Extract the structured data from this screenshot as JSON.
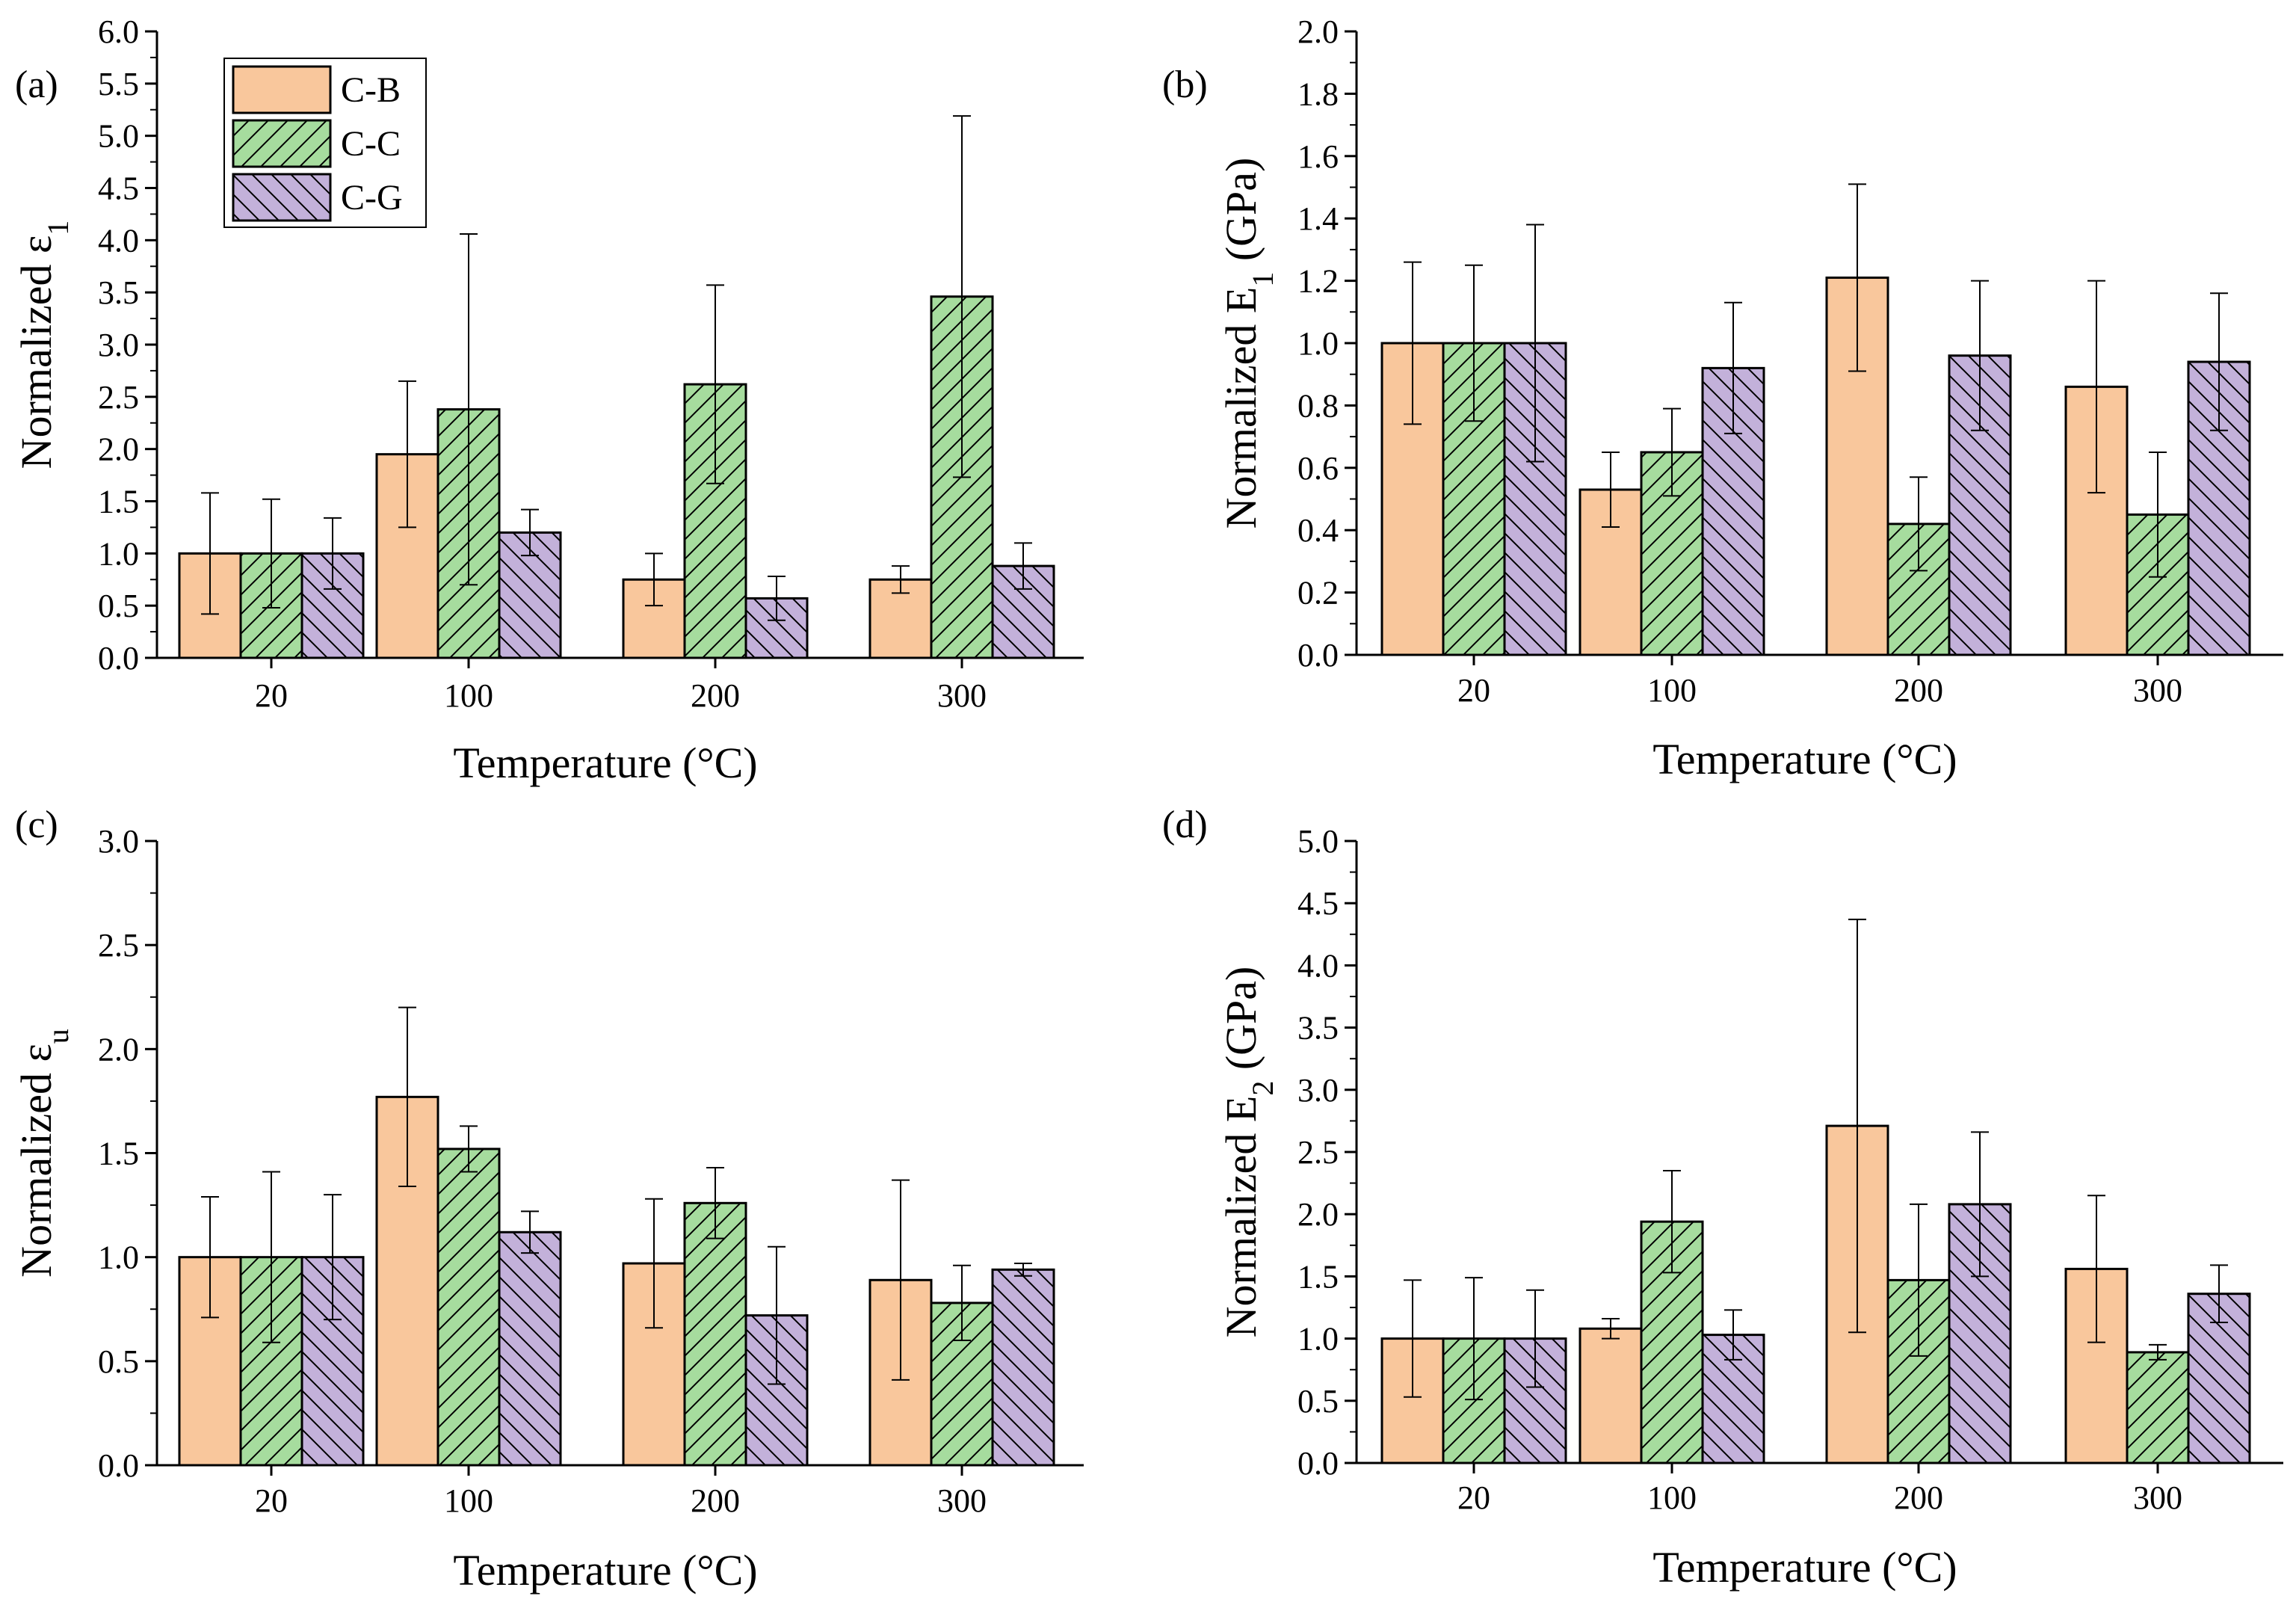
{
  "figure": {
    "description_label": "Four-panel grouped bar chart of normalized properties vs temperature"
  },
  "colors": {
    "C-B": "#f9c79c",
    "C-C": "#a6dc9e",
    "C-G": "#c3b1da"
  },
  "legend": [
    "C-B",
    "C-C",
    "C-G"
  ],
  "chart_data": [
    {
      "type": "bar",
      "panel": "(a)",
      "xlabel": "Temperature (°C)",
      "ylabel_main": "Normalized ε",
      "ylabel_sub": "1",
      "categories": [
        "20",
        "100",
        "200",
        "300"
      ],
      "ylim": [
        0,
        6
      ],
      "yticks": [
        "0.0",
        "0.5",
        "1.0",
        "1.5",
        "2.0",
        "2.5",
        "3.0",
        "3.5",
        "4.0",
        "4.5",
        "5.0",
        "5.5",
        "6.0"
      ],
      "series": [
        {
          "name": "C-B",
          "values": [
            1.0,
            1.95,
            0.75,
            0.75
          ],
          "errors": [
            0.58,
            0.7,
            0.25,
            0.13
          ]
        },
        {
          "name": "C-C",
          "values": [
            1.0,
            2.38,
            2.62,
            3.46
          ],
          "errors": [
            0.52,
            1.68,
            0.95,
            1.73
          ]
        },
        {
          "name": "C-G",
          "values": [
            1.0,
            1.2,
            0.57,
            0.88
          ],
          "errors": [
            0.34,
            0.22,
            0.21,
            0.22
          ]
        }
      ]
    },
    {
      "type": "bar",
      "panel": "(b)",
      "xlabel": "Temperature (°C)",
      "ylabel_main": "Normalized E",
      "ylabel_sub": "1",
      "ylabel_tail": " (GPa)",
      "categories": [
        "20",
        "100",
        "200",
        "300"
      ],
      "ylim": [
        0,
        2
      ],
      "yticks": [
        "0.0",
        "0.2",
        "0.4",
        "0.6",
        "0.8",
        "1.0",
        "1.2",
        "1.4",
        "1.6",
        "1.8",
        "2.0"
      ],
      "series": [
        {
          "name": "C-B",
          "values": [
            1.0,
            0.53,
            1.21,
            0.86
          ],
          "errors": [
            0.26,
            0.12,
            0.3,
            0.34
          ]
        },
        {
          "name": "C-C",
          "values": [
            1.0,
            0.65,
            0.42,
            0.45
          ],
          "errors": [
            0.25,
            0.14,
            0.15,
            0.2
          ]
        },
        {
          "name": "C-G",
          "values": [
            1.0,
            0.92,
            0.96,
            0.94
          ],
          "errors": [
            0.38,
            0.21,
            0.24,
            0.22
          ]
        }
      ]
    },
    {
      "type": "bar",
      "panel": "(c)",
      "xlabel": "Temperature (°C)",
      "ylabel_main": "Normalized ε",
      "ylabel_sub": "u",
      "categories": [
        "20",
        "100",
        "200",
        "300"
      ],
      "ylim": [
        0,
        3
      ],
      "yticks": [
        "0.0",
        "0.5",
        "1.0",
        "1.5",
        "2.0",
        "2.5",
        "3.0"
      ],
      "series": [
        {
          "name": "C-B",
          "values": [
            1.0,
            1.77,
            0.97,
            0.89
          ],
          "errors": [
            0.29,
            0.43,
            0.31,
            0.48
          ]
        },
        {
          "name": "C-C",
          "values": [
            1.0,
            1.52,
            1.26,
            0.78
          ],
          "errors": [
            0.41,
            0.11,
            0.17,
            0.18
          ]
        },
        {
          "name": "C-G",
          "values": [
            1.0,
            1.12,
            0.72,
            0.94
          ],
          "errors": [
            0.3,
            0.1,
            0.33,
            0.03
          ]
        }
      ]
    },
    {
      "type": "bar",
      "panel": "(d)",
      "xlabel": "Temperature (°C)",
      "ylabel_main": "Normalized E",
      "ylabel_sub": "2",
      "ylabel_tail": " (GPa)",
      "categories": [
        "20",
        "100",
        "200",
        "300"
      ],
      "ylim": [
        0,
        5
      ],
      "yticks": [
        "0.0",
        "0.5",
        "1.0",
        "1.5",
        "2.0",
        "2.5",
        "3.0",
        "3.5",
        "4.0",
        "4.5",
        "5.0"
      ],
      "series": [
        {
          "name": "C-B",
          "values": [
            1.0,
            1.08,
            2.71,
            1.56
          ],
          "errors": [
            0.47,
            0.08,
            1.66,
            0.59
          ]
        },
        {
          "name": "C-C",
          "values": [
            1.0,
            1.94,
            1.47,
            0.89
          ],
          "errors": [
            0.49,
            0.41,
            0.61,
            0.06
          ]
        },
        {
          "name": "C-G",
          "values": [
            1.0,
            1.03,
            2.08,
            1.36
          ],
          "errors": [
            0.39,
            0.2,
            0.58,
            0.23
          ]
        }
      ]
    }
  ]
}
